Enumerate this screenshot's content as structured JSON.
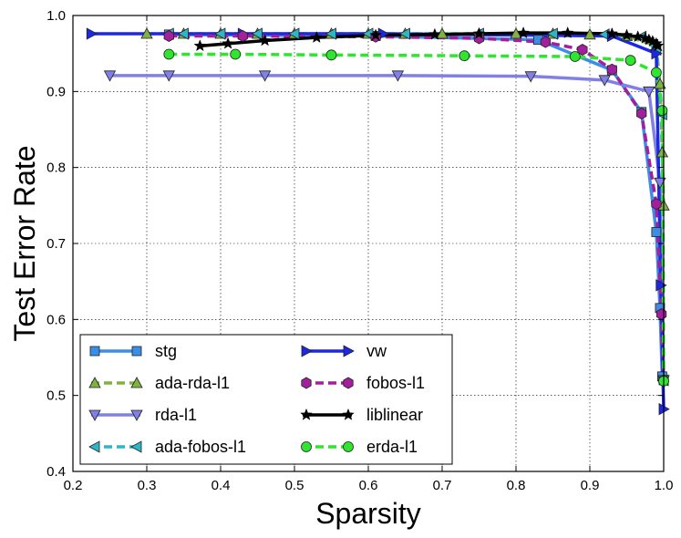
{
  "chart_data": {
    "type": "line",
    "title": "",
    "xlabel": "Sparsity",
    "ylabel": "Test Error Rate",
    "xlim": [
      0.2,
      1.0
    ],
    "ylim": [
      0.4,
      1.0
    ],
    "xticks": [
      0.2,
      0.3,
      0.4,
      0.5,
      0.6,
      0.7,
      0.8,
      0.9,
      1.0
    ],
    "yticks": [
      0.4,
      0.5,
      0.6,
      0.7,
      0.8,
      0.9,
      1.0
    ],
    "xtick_labels": [
      "0.2",
      "0.3",
      "0.4",
      "0.5",
      "0.6",
      "0.7",
      "0.8",
      "0.9",
      "1.0"
    ],
    "ytick_labels": [
      "0.4",
      "0.5",
      "0.6",
      "0.7",
      "0.8",
      "0.9",
      "1.0"
    ],
    "grid": true,
    "legend_position": "bottom-left",
    "series": [
      {
        "name": "stg",
        "color": "#3a8ee6",
        "marker": "square",
        "dash": "solid",
        "x": [
          0.33,
          0.61,
          0.83,
          0.93,
          0.97,
          0.99,
          0.995,
          0.998,
          1.0
        ],
        "y": [
          0.975,
          0.973,
          0.968,
          0.928,
          0.873,
          0.715,
          0.615,
          0.525,
          0.52
        ]
      },
      {
        "name": "ada-rda-l1",
        "color": "#7fb241",
        "marker": "triangle-up",
        "dash": "dashed",
        "x": [
          0.3,
          0.35,
          0.4,
          0.45,
          0.5,
          0.55,
          0.6,
          0.65,
          0.7,
          0.75,
          0.8,
          0.85,
          0.9,
          0.95,
          0.99,
          0.995,
          0.998,
          1.0
        ],
        "y": [
          0.976,
          0.976,
          0.976,
          0.976,
          0.976,
          0.976,
          0.976,
          0.976,
          0.976,
          0.976,
          0.976,
          0.976,
          0.975,
          0.973,
          0.96,
          0.91,
          0.82,
          0.75
        ]
      },
      {
        "name": "rda-l1",
        "color": "#8080e6",
        "marker": "triangle-down",
        "dash": "solid",
        "x": [
          0.25,
          0.33,
          0.46,
          0.64,
          0.82,
          0.92,
          0.98,
          0.995,
          1.0
        ],
        "y": [
          0.921,
          0.921,
          0.921,
          0.921,
          0.92,
          0.915,
          0.9,
          0.78,
          0.52
        ]
      },
      {
        "name": "ada-fobos-l1",
        "color": "#2fb5c8",
        "marker": "triangle-left",
        "dash": "dashed",
        "x": [
          0.33,
          0.35,
          0.4,
          0.45,
          0.5,
          0.55,
          0.6,
          0.65,
          0.75,
          0.85,
          0.92,
          0.97,
          0.99,
          0.998,
          1.0
        ],
        "y": [
          0.976,
          0.976,
          0.976,
          0.976,
          0.976,
          0.976,
          0.976,
          0.976,
          0.976,
          0.976,
          0.975,
          0.972,
          0.955,
          0.87,
          0.52
        ]
      },
      {
        "name": "vw",
        "color": "#1d27e6",
        "marker": "triangle-right",
        "dash": "solid",
        "x": [
          0.225,
          0.43,
          0.62,
          0.93,
          0.99,
          0.996,
          1.0
        ],
        "y": [
          0.976,
          0.976,
          0.976,
          0.973,
          0.95,
          0.645,
          0.482
        ]
      },
      {
        "name": "fobos-l1",
        "color": "#a31f9e",
        "marker": "hexagon",
        "dash": "dashed",
        "x": [
          0.33,
          0.43,
          0.61,
          0.75,
          0.84,
          0.89,
          0.93,
          0.97,
          0.99,
          0.997,
          1.0
        ],
        "y": [
          0.973,
          0.973,
          0.972,
          0.97,
          0.965,
          0.955,
          0.929,
          0.871,
          0.752,
          0.607,
          0.52
        ]
      },
      {
        "name": "liblinear",
        "color": "#000000",
        "marker": "star",
        "dash": "solid",
        "x": [
          0.372,
          0.41,
          0.46,
          0.53,
          0.61,
          0.69,
          0.75,
          0.81,
          0.87,
          0.93,
          0.95,
          0.965,
          0.975,
          0.98,
          0.985,
          0.99,
          0.992
        ],
        "y": [
          0.96,
          0.963,
          0.967,
          0.971,
          0.974,
          0.975,
          0.976,
          0.977,
          0.977,
          0.976,
          0.974,
          0.972,
          0.97,
          0.968,
          0.966,
          0.963,
          0.96
        ]
      },
      {
        "name": "erda-l1",
        "color": "#2ee62e",
        "marker": "circle",
        "dash": "dashed",
        "x": [
          0.33,
          0.42,
          0.55,
          0.73,
          0.88,
          0.955,
          0.99,
          0.998,
          1.0
        ],
        "y": [
          0.949,
          0.949,
          0.948,
          0.947,
          0.946,
          0.941,
          0.925,
          0.875,
          0.519
        ]
      }
    ]
  }
}
